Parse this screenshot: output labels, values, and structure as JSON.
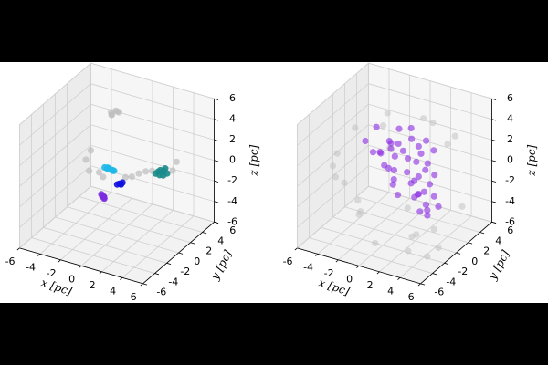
{
  "chart_data": [
    {
      "type": "scatter3d",
      "xlabel": "x [pc]",
      "ylabel": "y [pc]",
      "zlabel": "z [pc]",
      "xlim": [
        -6,
        6
      ],
      "ylim": [
        -6,
        6
      ],
      "zlim": [
        -6,
        6
      ],
      "xticks": [
        -6,
        -4,
        -2,
        0,
        2,
        4,
        6
      ],
      "yticks": [
        -6,
        -4,
        -2,
        0,
        2,
        4,
        6
      ],
      "zticks": [
        -6,
        -4,
        -2,
        0,
        2,
        4,
        6
      ],
      "grid": true,
      "series": [
        {
          "color": "#bdbdbd",
          "alpha": 0.7,
          "x": [
            -2.3,
            -1.8,
            -2.1,
            -1.9,
            -2.2,
            -1.7,
            -1,
            -0.5,
            0,
            2,
            2.5,
            3,
            3.5,
            4,
            0.5,
            -0.8,
            6,
            5.8
          ],
          "y": [
            3,
            3.2,
            2.8,
            3.1,
            2.9,
            3.3,
            -3.5,
            -3.8,
            -3,
            -2,
            -1.8,
            -1.5,
            -1.2,
            -1,
            -3.2,
            -3,
            -1,
            0
          ],
          "z": [
            3.8,
            3.9,
            3.7,
            4,
            3.6,
            3.8,
            2.8,
            2,
            1.6,
            1.2,
            1.3,
            1.6,
            1.8,
            1.9,
            1.4,
            3.5,
            2.5,
            2.8
          ]
        },
        {
          "color": "#1fb8e8",
          "alpha": 0.9,
          "x": [
            0.8,
            1,
            1.2,
            0.6,
            1.4,
            1,
            0.9,
            1.3
          ],
          "y": [
            -3,
            -3.2,
            -2.8,
            -3.1,
            -2.9,
            -3.3,
            -2.7,
            -3
          ],
          "z": [
            2.2,
            2.4,
            2,
            2.3,
            2.1,
            2.5,
            2,
            2.2
          ]
        },
        {
          "color": "#1010e0",
          "alpha": 0.9,
          "x": [
            1.4,
            1.6,
            1.5,
            1.3,
            1.7
          ],
          "y": [
            -2,
            -2.1,
            -1.9,
            -2.2,
            -2
          ],
          "z": [
            0.4,
            0.5,
            0.3,
            0.4,
            0.6
          ]
        },
        {
          "color": "#1a8a8a",
          "alpha": 0.9,
          "x": [
            4.6,
            5,
            5.2,
            4.8,
            5.4,
            4.4,
            5.1,
            4.9
          ],
          "y": [
            -1,
            -0.8,
            -1.2,
            -1,
            -0.9,
            -1.1,
            -0.7,
            -1.3
          ],
          "z": [
            2,
            2.1,
            1.9,
            2.2,
            2,
            1.8,
            2.3,
            1.9
          ]
        },
        {
          "color": "#7a2be0",
          "alpha": 0.9,
          "x": [
            0.9,
            1.1,
            1,
            0.8,
            1.2
          ],
          "y": [
            -4,
            -4.1,
            -3.9,
            -4,
            -4.2
          ],
          "z": [
            0,
            0.1,
            -0.1,
            0.2,
            0
          ]
        }
      ]
    },
    {
      "type": "scatter3d",
      "xlabel": "x [pc]",
      "ylabel": "y [pc]",
      "zlabel": "z [pc]",
      "xlim": [
        -6,
        6
      ],
      "ylim": [
        -6,
        6
      ],
      "zlim": [
        -6,
        6
      ],
      "xticks": [
        -6,
        -4,
        -2,
        0,
        2,
        4,
        6
      ],
      "yticks": [
        -6,
        -4,
        -2,
        0,
        2,
        4,
        6
      ],
      "zticks": [
        -6,
        -4,
        -2,
        0,
        2,
        4,
        6
      ],
      "grid": true,
      "series": [
        {
          "color": "#bdbdbd",
          "alpha": 0.5,
          "x": [
            -5,
            -4,
            -3,
            -6,
            -2,
            4,
            5,
            6,
            3,
            -1,
            2,
            0,
            -3,
            5,
            6,
            -4,
            1,
            4,
            -5,
            3,
            5.5,
            -2.5,
            0.5,
            4.5
          ],
          "y": [
            2,
            -3,
            4,
            0,
            -5,
            -4,
            -5,
            -3,
            5,
            -4,
            3,
            -6,
            -1,
            -2,
            1,
            5,
            -5,
            2,
            -1,
            -3,
            -4,
            3.5,
            4,
            -5.5
          ],
          "z": [
            2,
            0,
            3,
            -1,
            1,
            -3,
            -2,
            -4,
            2,
            -2,
            4,
            -1,
            -3,
            -3,
            -2,
            1,
            -4,
            3,
            1,
            -1,
            -4.5,
            0,
            3.5,
            -3.5
          ]
        },
        {
          "color": "#8a2be2",
          "alpha": 0.6,
          "x": [
            -2,
            -1.5,
            -1,
            -0.5,
            0,
            0.5,
            1,
            1.5,
            2,
            2.5,
            3,
            3.5,
            4,
            4.5,
            5,
            -1.8,
            -1.2,
            -0.2,
            0.8,
            1.8,
            2.8,
            3.8,
            4.8,
            -1,
            0,
            1,
            2,
            3,
            4,
            0.3,
            1.3,
            2.3,
            3.3,
            -0.7,
            1.7,
            2.7,
            0.2,
            3.2,
            4.2,
            -1.4,
            -4,
            -3.5,
            6,
            5.5
          ],
          "y": [
            1,
            2,
            0,
            1.5,
            -1,
            2,
            0.5,
            -0.5,
            1,
            -1,
            0,
            -2,
            -1,
            -2.5,
            -2,
            -0.5,
            1.2,
            0.4,
            -1.5,
            2.2,
            -0.8,
            -1.6,
            -2.8,
            2.5,
            2.8,
            -2,
            0.2,
            1.4,
            -0.2,
            -0.6,
            1.8,
            -1.2,
            -1.8,
            0.6,
            -2.4,
            0.9,
            1.1,
            -2.2,
            -3,
            0.1,
            2,
            3,
            -3,
            -4
          ],
          "z": [
            1,
            1.5,
            0.5,
            2,
            1,
            2.5,
            1.5,
            0.8,
            2,
            0.5,
            1.2,
            0,
            0.6,
            -0.5,
            0.2,
            1.8,
            2.2,
            1.4,
            0.4,
            2.6,
            0.9,
            0.1,
            -0.8,
            2.8,
            3,
            0.2,
            1.6,
            2.4,
            1.1,
            0.7,
            2.1,
            0.3,
            -0.2,
            1.9,
            -0.4,
            1.3,
            1.7,
            -0.3,
            -1,
            1.5,
            1,
            2,
            0,
            -0.5
          ]
        }
      ]
    }
  ]
}
